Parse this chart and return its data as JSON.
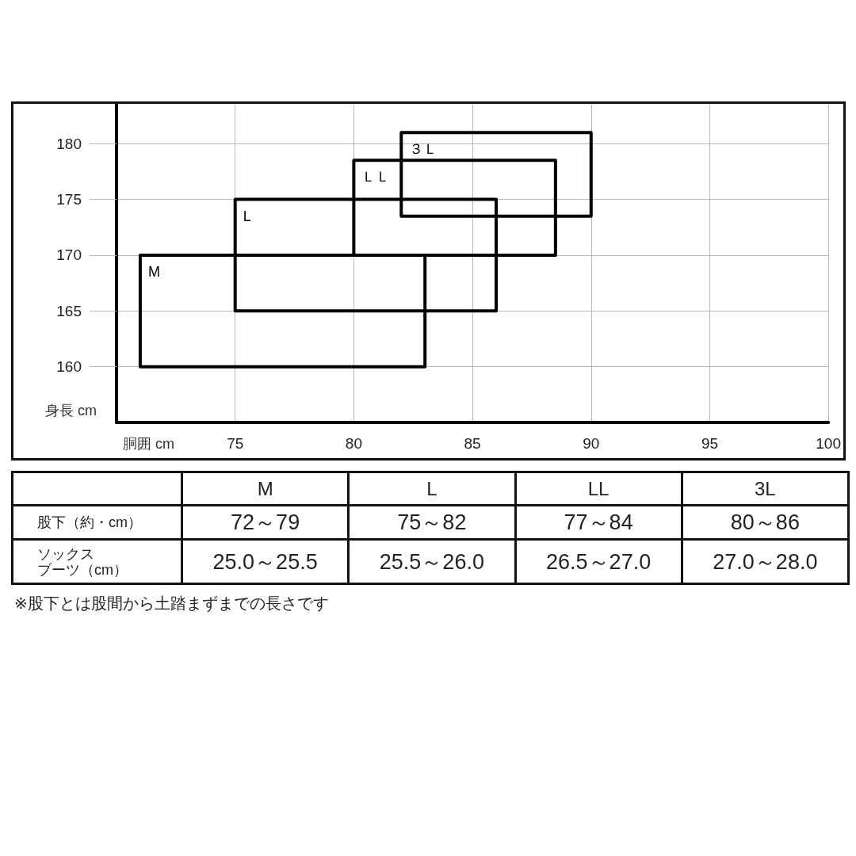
{
  "chart_data": [
    {
      "type": "line",
      "xlabel": "胴囲 cm",
      "ylabel": "身長 cm",
      "series": [
        {
          "name": "M",
          "color": "#000000",
          "x": [
            71,
            83,
            83,
            71,
            71
          ],
          "values": [
            170,
            170,
            160,
            160,
            170
          ]
        },
        {
          "name": "L",
          "color": "#000000",
          "x": [
            75,
            86,
            86,
            75,
            75
          ],
          "values": [
            175,
            175,
            165,
            165,
            175
          ]
        },
        {
          "name": "ＬＬ",
          "color": "#000000",
          "x": [
            80,
            88.5,
            88.5,
            80,
            80
          ],
          "values": [
            178.5,
            178.5,
            170,
            170,
            178.5
          ]
        },
        {
          "name": "３Ｌ",
          "color": "#000000",
          "x": [
            82,
            90,
            90,
            82,
            82
          ],
          "values": [
            181,
            181,
            173.5,
            173.5,
            181
          ]
        }
      ],
      "xlim": [
        70,
        100
      ],
      "ylim": [
        155,
        183.5
      ],
      "xticks": [
        75,
        80,
        85,
        90,
        95,
        100
      ],
      "yticks": [
        160,
        165,
        170,
        175,
        180
      ],
      "grid": true,
      "marker": "none",
      "line_style": "solid"
    },
    {
      "type": "other",
      "categories": [
        "M",
        "L",
        "LL",
        "3L"
      ],
      "y_categories": [
        "股下（約・cm）",
        "ソックスブーツ（cm）"
      ],
      "cell_labels": [
        [
          "72～79",
          "75～82",
          "77～84",
          "80～86"
        ],
        [
          "25.0～25.5",
          "25.5～26.0",
          "26.5～27.0",
          "27.0～28.0"
        ]
      ],
      "annotations": [
        "※股下とは股間から土踏まずまでの長さです"
      ]
    }
  ]
}
